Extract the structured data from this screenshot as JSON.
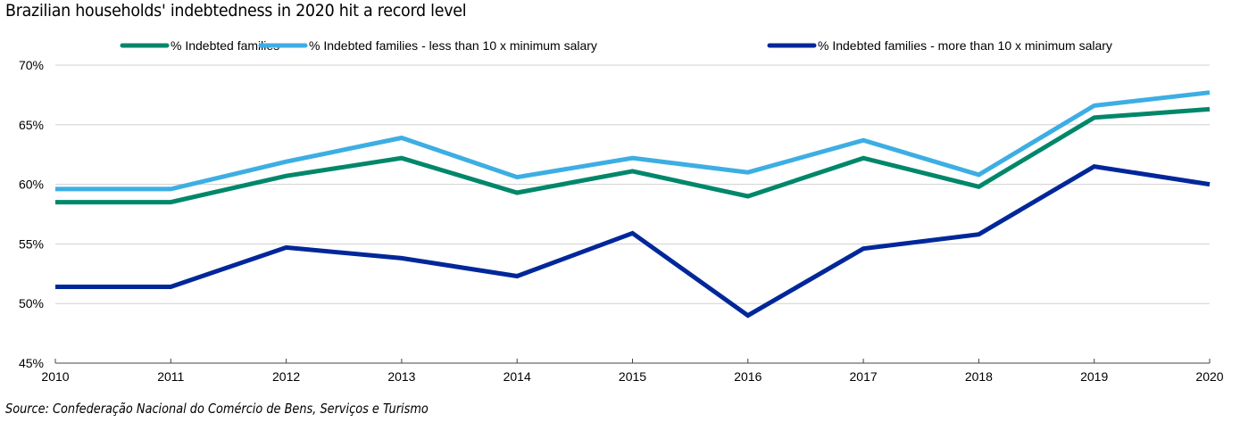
{
  "title": "Brazilian households' indebtedness in 2020 hit a record level",
  "source": "Source: Confederação Nacional do Comércio de Bens, Serviços e Turismo",
  "chart_data": {
    "type": "line",
    "title": "Brazilian households' indebtedness in 2020 hit a record level",
    "xlabel": "",
    "ylabel": "",
    "x": [
      2010,
      2011,
      2012,
      2013,
      2014,
      2015,
      2016,
      2017,
      2018,
      2019,
      2020
    ],
    "x_tick_labels": [
      "2010",
      "2011",
      "2012",
      "2013",
      "2014",
      "2015",
      "2016",
      "2017",
      "2018",
      "2019",
      "2020"
    ],
    "ylim": [
      45,
      70
    ],
    "y_ticks": [
      45,
      50,
      55,
      60,
      65,
      70
    ],
    "y_tick_labels": [
      "45%",
      "50%",
      "55%",
      "60%",
      "65%",
      "70%"
    ],
    "grid": true,
    "legend_position": "top",
    "series": [
      {
        "name": "% Indebted families",
        "color": "#00876A",
        "values": [
          58.5,
          58.5,
          60.7,
          62.2,
          59.3,
          61.1,
          59.0,
          62.2,
          59.8,
          65.6,
          66.3
        ]
      },
      {
        "name": "% Indebted families - less than 10 x minimum salary",
        "color": "#3DAEE3",
        "values": [
          59.6,
          59.6,
          61.9,
          63.9,
          60.6,
          62.2,
          61.0,
          63.7,
          60.8,
          66.6,
          67.7
        ]
      },
      {
        "name": "% Indebted families - more than 10 x minimum salary",
        "color": "#00279A",
        "values": [
          51.4,
          51.4,
          54.7,
          53.8,
          52.3,
          55.9,
          49.0,
          54.6,
          55.8,
          61.5,
          60.0
        ]
      }
    ]
  }
}
